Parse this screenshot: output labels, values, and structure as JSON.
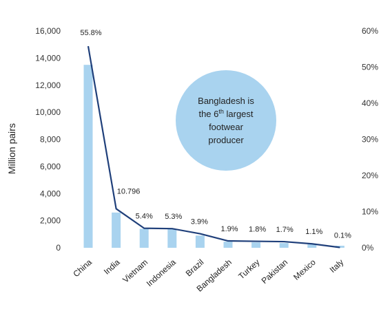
{
  "chart_data": {
    "type": "bar",
    "categories": [
      "China",
      "India",
      "Vietnam",
      "Indonesia",
      "Brazil",
      "Bangladesh",
      "Turkey",
      "Pakistan",
      "Mexico",
      "Italy"
    ],
    "series": [
      {
        "type": "bar",
        "axis": "left",
        "color": "#a9d3ef",
        "values": [
          13500,
          2600,
          1400,
          1400,
          900,
          450,
          400,
          350,
          250,
          150
        ]
      },
      {
        "type": "line",
        "axis": "right",
        "color": "#1f3f7a",
        "values": [
          55.8,
          10.796,
          5.4,
          5.3,
          3.9,
          1.9,
          1.8,
          1.7,
          1.1,
          0.1
        ],
        "data_labels": [
          "55.8%",
          "10.796",
          "5.4%",
          "5.3%",
          "3.9%",
          "1.9%",
          "1.8%",
          "1.7%",
          "1.1%",
          "0.1%"
        ]
      }
    ],
    "ylabel": "Million pairs",
    "ylim": [
      0,
      16000
    ],
    "y_ticks": [
      "0",
      "2,000",
      "4,000",
      "6,000",
      "8,000",
      "10,000",
      "12,000",
      "14,000",
      "16,000"
    ],
    "y2lim": [
      0,
      60
    ],
    "y2_ticks": [
      "0%",
      "10%",
      "20%",
      "30%",
      "40%",
      "50%",
      "60%"
    ],
    "grid": false,
    "annotation": {
      "line1": "Bangladesh is",
      "line2_pre": "the 6",
      "line2_sup": "th",
      "line2_post": " largest",
      "line3": "footwear",
      "line4": "producer",
      "color": "#a9d3ef"
    }
  }
}
